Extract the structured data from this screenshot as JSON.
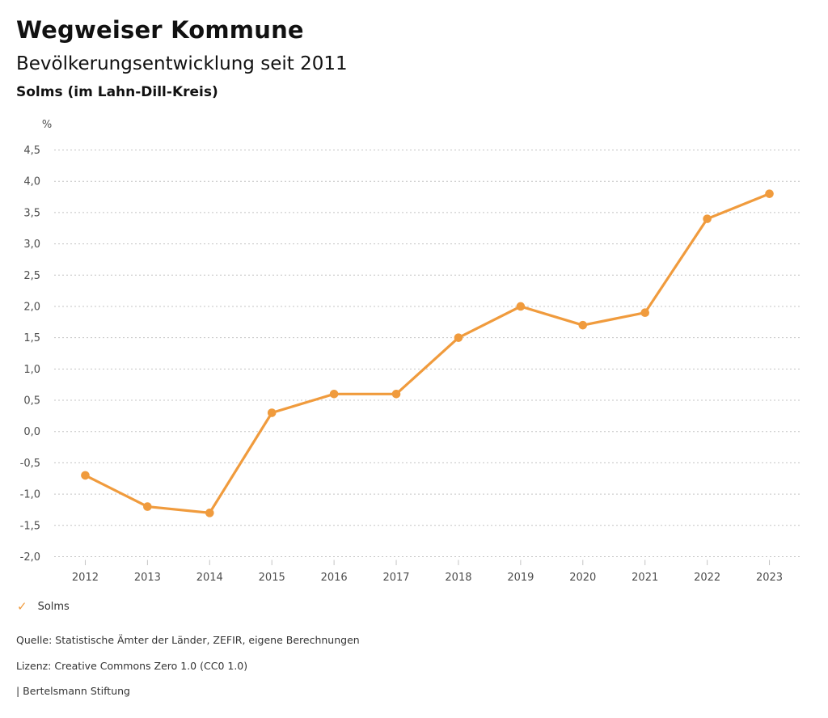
{
  "header": {
    "title": "Wegweiser Kommune",
    "subtitle": "Bevölkerungsentwicklung seit 2011",
    "region": "Solms (im Lahn-Dill-Kreis)"
  },
  "chart_data": {
    "type": "line",
    "title": "Bevölkerungsentwicklung seit 2011",
    "subtitle": "Solms (im Lahn-Dill-Kreis)",
    "unit_label": "%",
    "x": [
      "2012",
      "2013",
      "2014",
      "2015",
      "2016",
      "2017",
      "2018",
      "2019",
      "2020",
      "2021",
      "2022",
      "2023"
    ],
    "series": [
      {
        "name": "Solms",
        "color": "#F09B3D",
        "values": [
          -0.7,
          -1.2,
          -1.3,
          0.3,
          0.6,
          0.6,
          1.5,
          2.0,
          1.7,
          1.9,
          3.4,
          3.8
        ]
      }
    ],
    "ylim": [
      -2.0,
      4.5
    ],
    "ytick_step": 0.5,
    "ytick_labels": [
      "4,5",
      "4,0",
      "3,5",
      "3,0",
      "2,5",
      "2,0",
      "1,5",
      "1,0",
      "0,5",
      "0,0",
      "-0,5",
      "-1,0",
      "-1,5",
      "-2,0"
    ],
    "grid": "dotted-horizontal",
    "legend_position": "bottom-left"
  },
  "legend": {
    "check_icon": "✓",
    "label": "Solms"
  },
  "footer": {
    "source": "Quelle: Statistische Ämter der Länder, ZEFIR, eigene Berechnungen",
    "license": "Lizenz: Creative Commons Zero 1.0 (CC0 1.0)",
    "attribution": "| Bertelsmann Stiftung"
  },
  "colors": {
    "series_orange": "#F09B3D",
    "gridline": "#c4c4c4",
    "tick_text": "#4d4d4d",
    "heading_text": "#111111",
    "footer_text": "#333333",
    "background": "#ffffff"
  }
}
